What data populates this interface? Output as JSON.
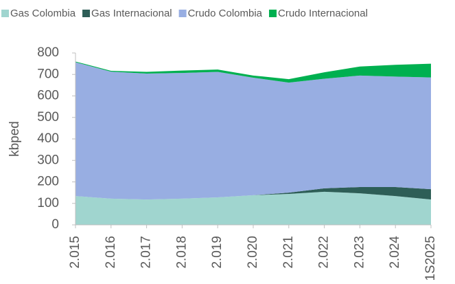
{
  "chart_data": {
    "type": "stacked_area",
    "y_label": "kbped",
    "categories": [
      "2.015",
      "2.016",
      "2.017",
      "2.018",
      "2.019",
      "2.020",
      "2.021",
      "2.022",
      "2.023",
      "2.024",
      "1S2025"
    ],
    "series": [
      {
        "name": "Gas Colombia",
        "color": "#a0d5cf",
        "values": [
          134,
          122,
          118,
          122,
          128,
          138,
          144,
          154,
          147,
          134,
          118
        ]
      },
      {
        "name": "Gas Internacional",
        "color": "#2e5e57",
        "values": [
          0,
          0,
          0,
          0,
          0,
          0,
          6,
          16,
          29,
          42,
          48
        ]
      },
      {
        "name": "Crudo Colombia",
        "color": "#98aee2",
        "values": [
          623,
          591,
          586,
          585,
          584,
          547,
          512,
          510,
          519,
          514,
          520
        ]
      },
      {
        "name": "Crudo Internacional",
        "color": "#00b050",
        "values": [
          3,
          4,
          8,
          11,
          11,
          10,
          16,
          30,
          42,
          55,
          64
        ]
      }
    ],
    "ylim": [
      0,
      800
    ],
    "yticks": [
      0,
      100,
      200,
      300,
      400,
      500,
      600,
      700,
      800
    ],
    "legend": "top"
  }
}
